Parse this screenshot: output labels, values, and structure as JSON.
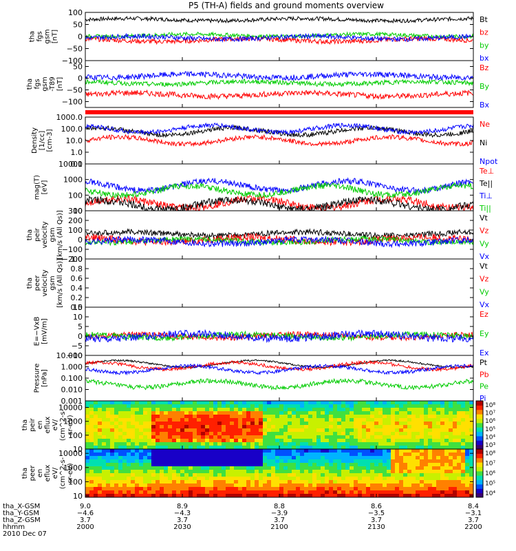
{
  "title": "P5 (TH-A) fields and ground moments overview",
  "red_bar_color": "#ff0000",
  "colorbar_colors": [
    "#3b0070",
    "#1800c8",
    "#0050ff",
    "#00b4ff",
    "#00e0b0",
    "#40e040",
    "#c8f000",
    "#ffe000",
    "#ff8000",
    "#ff2000",
    "#b00000"
  ],
  "chart_data": [
    {
      "type": "line",
      "ylabel_lines": [
        "tha",
        "fgs",
        "gsm",
        "[nT]"
      ],
      "ylim": [
        -100,
        100
      ],
      "yticks": [
        {
          "v": 100,
          "t": "100"
        },
        {
          "v": 50,
          "t": "50"
        },
        {
          "v": 0,
          "t": "0"
        },
        {
          "v": -50,
          "t": "−50"
        },
        {
          "v": -100,
          "t": "−100"
        }
      ],
      "series": [
        {
          "name": "Bt",
          "color": "#000000",
          "level": 70,
          "noise": 8
        },
        {
          "name": "bz",
          "color": "#ff0000",
          "level": -15,
          "noise": 10
        },
        {
          "name": "by",
          "color": "#00cc00",
          "level": 5,
          "noise": 8
        },
        {
          "name": "bx",
          "color": "#0000ff",
          "level": -5,
          "noise": 10
        }
      ]
    },
    {
      "type": "line",
      "ylabel_lines": [
        "tha",
        "fgs",
        "gsm",
        "-T89",
        "[nT]"
      ],
      "ylim": [
        -125,
        75
      ],
      "yticks": [
        {
          "v": 50,
          "t": "50"
        },
        {
          "v": 0,
          "t": "0"
        },
        {
          "v": -50,
          "t": "−50"
        },
        {
          "v": -100,
          "t": "−100"
        }
      ],
      "series": [
        {
          "name": "Bz",
          "color": "#ff0000",
          "level": -70,
          "noise": 12
        },
        {
          "name": "By",
          "color": "#00cc00",
          "level": -20,
          "noise": 10
        },
        {
          "name": "Bx",
          "color": "#0000ff",
          "level": 10,
          "noise": 12
        }
      ]
    },
    {
      "type": "line",
      "log": true,
      "ylabel_lines": [
        "Density",
        "[1/cc]",
        "[cm-3]"
      ],
      "ylim": [
        0.1,
        1000
      ],
      "yticks": [
        {
          "v": 1000,
          "t": "1000.0"
        },
        {
          "v": 100,
          "t": "100.0"
        },
        {
          "v": 10,
          "t": "10.0"
        },
        {
          "v": 1,
          "t": "1.0"
        },
        {
          "v": 0.1,
          "t": "0.1"
        }
      ],
      "series": [
        {
          "name": "Ne",
          "color": "#ff0000",
          "level": 10,
          "noise": 0.2
        },
        {
          "name": "Ni",
          "color": "#000000",
          "level": 60,
          "noise": 0.2
        },
        {
          "name": "Npot",
          "color": "#0000ff",
          "level": 100,
          "noise": 0.2
        }
      ]
    },
    {
      "type": "line",
      "log": true,
      "ylabel_lines": [
        "mag(T)",
        "[eV]"
      ],
      "ylim": [
        10,
        10000
      ],
      "yticks": [
        {
          "v": 10000,
          "t": "10000"
        },
        {
          "v": 1000,
          "t": "1000"
        },
        {
          "v": 100,
          "t": "100"
        },
        {
          "v": 10,
          "t": "10"
        }
      ],
      "series": [
        {
          "name": "Te⊥",
          "color": "#ff0000",
          "level": 30,
          "noise": 0.25
        },
        {
          "name": "Te||",
          "color": "#000000",
          "level": 25,
          "noise": 0.25
        },
        {
          "name": "Ti⊥",
          "color": "#0000ff",
          "level": 400,
          "noise": 0.2
        },
        {
          "name": "Ti||",
          "color": "#00cc00",
          "level": 200,
          "noise": 0.2
        }
      ]
    },
    {
      "type": "line",
      "ylabel_lines": [
        "tha",
        "peir",
        "velocity",
        "gsm",
        "[km/s (All Qs)]"
      ],
      "ylim": [
        -200,
        300
      ],
      "yticks": [
        {
          "v": 300,
          "t": "300"
        },
        {
          "v": 200,
          "t": "200"
        },
        {
          "v": 100,
          "t": "100"
        },
        {
          "v": 0,
          "t": "0"
        },
        {
          "v": -100,
          "t": "−100"
        },
        {
          "v": -200,
          "t": "−200"
        }
      ],
      "series": [
        {
          "name": "Vt",
          "color": "#000000",
          "level": 60,
          "noise": 30
        },
        {
          "name": "Vz",
          "color": "#ff0000",
          "level": 0,
          "noise": 40
        },
        {
          "name": "Vy",
          "color": "#00cc00",
          "level": -10,
          "noise": 30
        },
        {
          "name": "Vx",
          "color": "#0000ff",
          "level": -20,
          "noise": 35
        }
      ]
    },
    {
      "type": "line",
      "empty": true,
      "ylabel_lines": [
        "tha",
        "peer",
        "velocity",
        "gsm",
        "[km/s (All Qs)]"
      ],
      "ylim": [
        0,
        1
      ],
      "yticks": [
        {
          "v": 1.0,
          "t": "1.0"
        },
        {
          "v": 0.8,
          "t": "0.8"
        },
        {
          "v": 0.6,
          "t": "0.6"
        },
        {
          "v": 0.4,
          "t": "0.4"
        },
        {
          "v": 0.2,
          "t": "0.2"
        },
        {
          "v": 0.0,
          "t": "0.0"
        }
      ],
      "series": [
        {
          "name": "Vt",
          "color": "#000000"
        },
        {
          "name": "Vz",
          "color": "#ff0000"
        },
        {
          "name": "Vy",
          "color": "#00cc00"
        },
        {
          "name": "Vx",
          "color": "#0000ff"
        }
      ]
    },
    {
      "type": "line",
      "ylabel_lines": [
        "E=−VxB",
        "[mV/m]"
      ],
      "ylim": [
        -10,
        15
      ],
      "yticks": [
        {
          "v": 15,
          "t": "15"
        },
        {
          "v": 10,
          "t": "10"
        },
        {
          "v": 5,
          "t": "5"
        },
        {
          "v": 0,
          "t": "0"
        },
        {
          "v": -5,
          "t": "−5"
        },
        {
          "v": -10,
          "t": "−10"
        }
      ],
      "series": [
        {
          "name": "Ez",
          "color": "#ff0000",
          "level": 0,
          "noise": 1.5
        },
        {
          "name": "Ey",
          "color": "#00cc00",
          "level": 0,
          "noise": 1.5
        },
        {
          "name": "Ex",
          "color": "#0000ff",
          "level": 0,
          "noise": 2
        }
      ]
    },
    {
      "type": "line",
      "log": true,
      "ylabel_lines": [
        "Pressure",
        "[nPa]"
      ],
      "ylim": [
        0.001,
        10
      ],
      "yticks": [
        {
          "v": 10,
          "t": "10.000"
        },
        {
          "v": 1,
          "t": "1.000"
        },
        {
          "v": 0.1,
          "t": "0.100"
        },
        {
          "v": 0.01,
          "t": "0.010"
        },
        {
          "v": 0.001,
          "t": "0.001"
        }
      ],
      "series": [
        {
          "name": "Pt",
          "color": "#000000",
          "level": 1.8,
          "noise": 0.08
        },
        {
          "name": "Pb",
          "color": "#ff0000",
          "level": 1.2,
          "noise": 0.15
        },
        {
          "name": "Pe",
          "color": "#00cc00",
          "level": 0.03,
          "noise": 0.2
        },
        {
          "name": "Pi",
          "color": "#0000ff",
          "level": 0.6,
          "noise": 0.15
        }
      ]
    },
    {
      "type": "heatmap",
      "log": true,
      "ylabel_lines": [
        "tha",
        "peir",
        "en",
        "eflux",
        "eV/",
        "(cm^2-s-",
        "sr-eV)"
      ],
      "ylim": [
        10,
        30000
      ],
      "yticks": [
        {
          "v": 10000,
          "t": "10000"
        },
        {
          "v": 1000,
          "t": "1000"
        },
        {
          "v": 100,
          "t": "100"
        },
        {
          "v": 10,
          "t": "10"
        }
      ],
      "colorbar_ticks": [
        "10⁸",
        "10⁷",
        "10⁶",
        "10⁵",
        "10⁴",
        "10³"
      ]
    },
    {
      "type": "heatmap",
      "log": true,
      "ylabel_lines": [
        "tha",
        "peer",
        "en",
        "eflux",
        "eV/",
        "(cm^2-s-",
        "sr-eV)"
      ],
      "ylim": [
        8,
        20000
      ],
      "yticks": [
        {
          "v": 10000,
          "t": "10000"
        },
        {
          "v": 1000,
          "t": "1000"
        },
        {
          "v": 100,
          "t": "100"
        },
        {
          "v": 10,
          "t": "10"
        }
      ],
      "colorbar_ticks": [
        "10⁸",
        "10⁷",
        "10⁶",
        "10⁵",
        "10⁴"
      ]
    }
  ],
  "x_axis": {
    "row_labels": [
      "tha_X-GSM",
      "tha_Y-GSM",
      "tha_Z-GSM",
      "hhmm",
      "2010 Dec 07"
    ],
    "columns": [
      {
        "values": [
          "9.0",
          "−4.6",
          "3.7",
          "2000"
        ]
      },
      {
        "values": [
          "8.9",
          "−4.3",
          "3.7",
          "2030"
        ]
      },
      {
        "values": [
          "8.8",
          "−3.9",
          "3.7",
          "2100"
        ]
      },
      {
        "values": [
          "8.6",
          "−3.5",
          "3.7",
          "2130"
        ]
      },
      {
        "values": [
          "8.4",
          "−3.1",
          "3.7",
          "2200"
        ]
      }
    ]
  }
}
